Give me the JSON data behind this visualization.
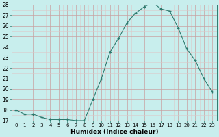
{
  "x": [
    0,
    1,
    2,
    3,
    4,
    5,
    6,
    7,
    8,
    9,
    10,
    11,
    12,
    13,
    14,
    15,
    16,
    17,
    18,
    19,
    20,
    21,
    22,
    23
  ],
  "y": [
    18.0,
    17.6,
    17.6,
    17.3,
    17.1,
    17.1,
    17.1,
    17.0,
    17.0,
    19.0,
    21.0,
    23.5,
    24.8,
    26.3,
    27.2,
    27.8,
    28.2,
    27.6,
    27.4,
    25.8,
    23.8,
    22.7,
    21.0,
    19.7
  ],
  "xlabel": "Humidex (Indice chaleur)",
  "xlim": [
    -0.5,
    23.5
  ],
  "ylim": [
    17,
    28
  ],
  "yticks": [
    17,
    18,
    19,
    20,
    21,
    22,
    23,
    24,
    25,
    26,
    27,
    28
  ],
  "xticks": [
    0,
    1,
    2,
    3,
    4,
    5,
    6,
    7,
    8,
    9,
    10,
    11,
    12,
    13,
    14,
    15,
    16,
    17,
    18,
    19,
    20,
    21,
    22,
    23
  ],
  "line_color": "#2d7a6e",
  "marker_color": "#2d7a6e",
  "bg_color": "#c8eeed",
  "major_grid_color": "#c8a0a0",
  "minor_grid_color": "#dcc8c8"
}
